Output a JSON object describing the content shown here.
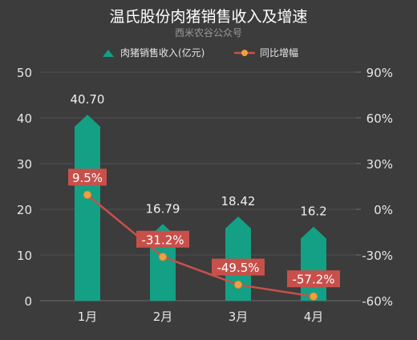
{
  "chart_data": {
    "type": "bar",
    "title": "温氏股份肉猪销售收入及增速",
    "subtitle": "西米农谷公众号",
    "categories": [
      "1月",
      "2月",
      "3月",
      "4月"
    ],
    "series": [
      {
        "name": "肉猪销售收入(亿元)",
        "type": "bar",
        "axis": "left",
        "values": [
          40.7,
          16.79,
          18.42,
          16.2
        ],
        "labels": [
          "40.70",
          "16.79",
          "18.42",
          "16.2"
        ],
        "color": "#14a085"
      },
      {
        "name": "同比增幅",
        "type": "line",
        "axis": "right",
        "values": [
          9.5,
          -31.2,
          -49.5,
          -57.2
        ],
        "labels": [
          "9.5%",
          "-31.2%",
          "-49.5%",
          "-57.2%"
        ],
        "color": "#c8504b"
      }
    ],
    "y_left": {
      "ylim": [
        0,
        50
      ],
      "ticks": [
        "0",
        "10",
        "20",
        "30",
        "40",
        "50"
      ]
    },
    "y_right": {
      "ylim": [
        -60,
        90
      ],
      "ticks": [
        "-60%",
        "-30%",
        "0%",
        "30%",
        "60%",
        "90%"
      ]
    },
    "legend_position": "top",
    "grid": true,
    "background": "#3c3c3c"
  }
}
